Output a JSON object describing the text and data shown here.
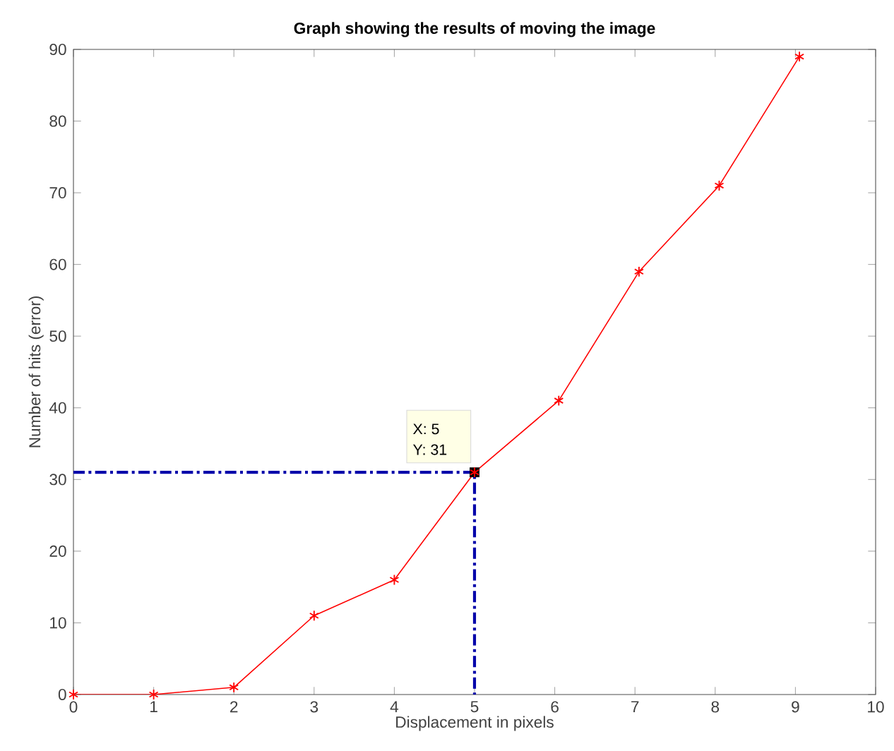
{
  "chart_data": {
    "type": "line",
    "title": "Graph showing the results of moving the image",
    "xlabel": "Displacement in pixels",
    "ylabel": "Number of hits (error)",
    "xlim": [
      0,
      10
    ],
    "ylim": [
      0,
      90
    ],
    "xticks": [
      0,
      1,
      2,
      3,
      4,
      5,
      6,
      7,
      8,
      9,
      10
    ],
    "yticks": [
      0,
      10,
      20,
      30,
      40,
      50,
      60,
      70,
      80,
      90
    ],
    "grid": false,
    "series": [
      {
        "color": "#ff0000",
        "marker": "cross",
        "line_style": "solid",
        "x": [
          0,
          1,
          2,
          3,
          4,
          5,
          6.05,
          7.05,
          8.05,
          9.05
        ],
        "values": [
          0,
          0,
          1,
          11,
          16,
          31,
          41,
          59,
          71,
          89
        ]
      },
      {
        "color": "#0000aa",
        "marker": "none",
        "line_style": "dashed",
        "x": [
          0,
          5,
          5
        ],
        "values": [
          31,
          31,
          0
        ]
      }
    ],
    "annotations": [
      "X: 5",
      "Y: 31"
    ]
  }
}
